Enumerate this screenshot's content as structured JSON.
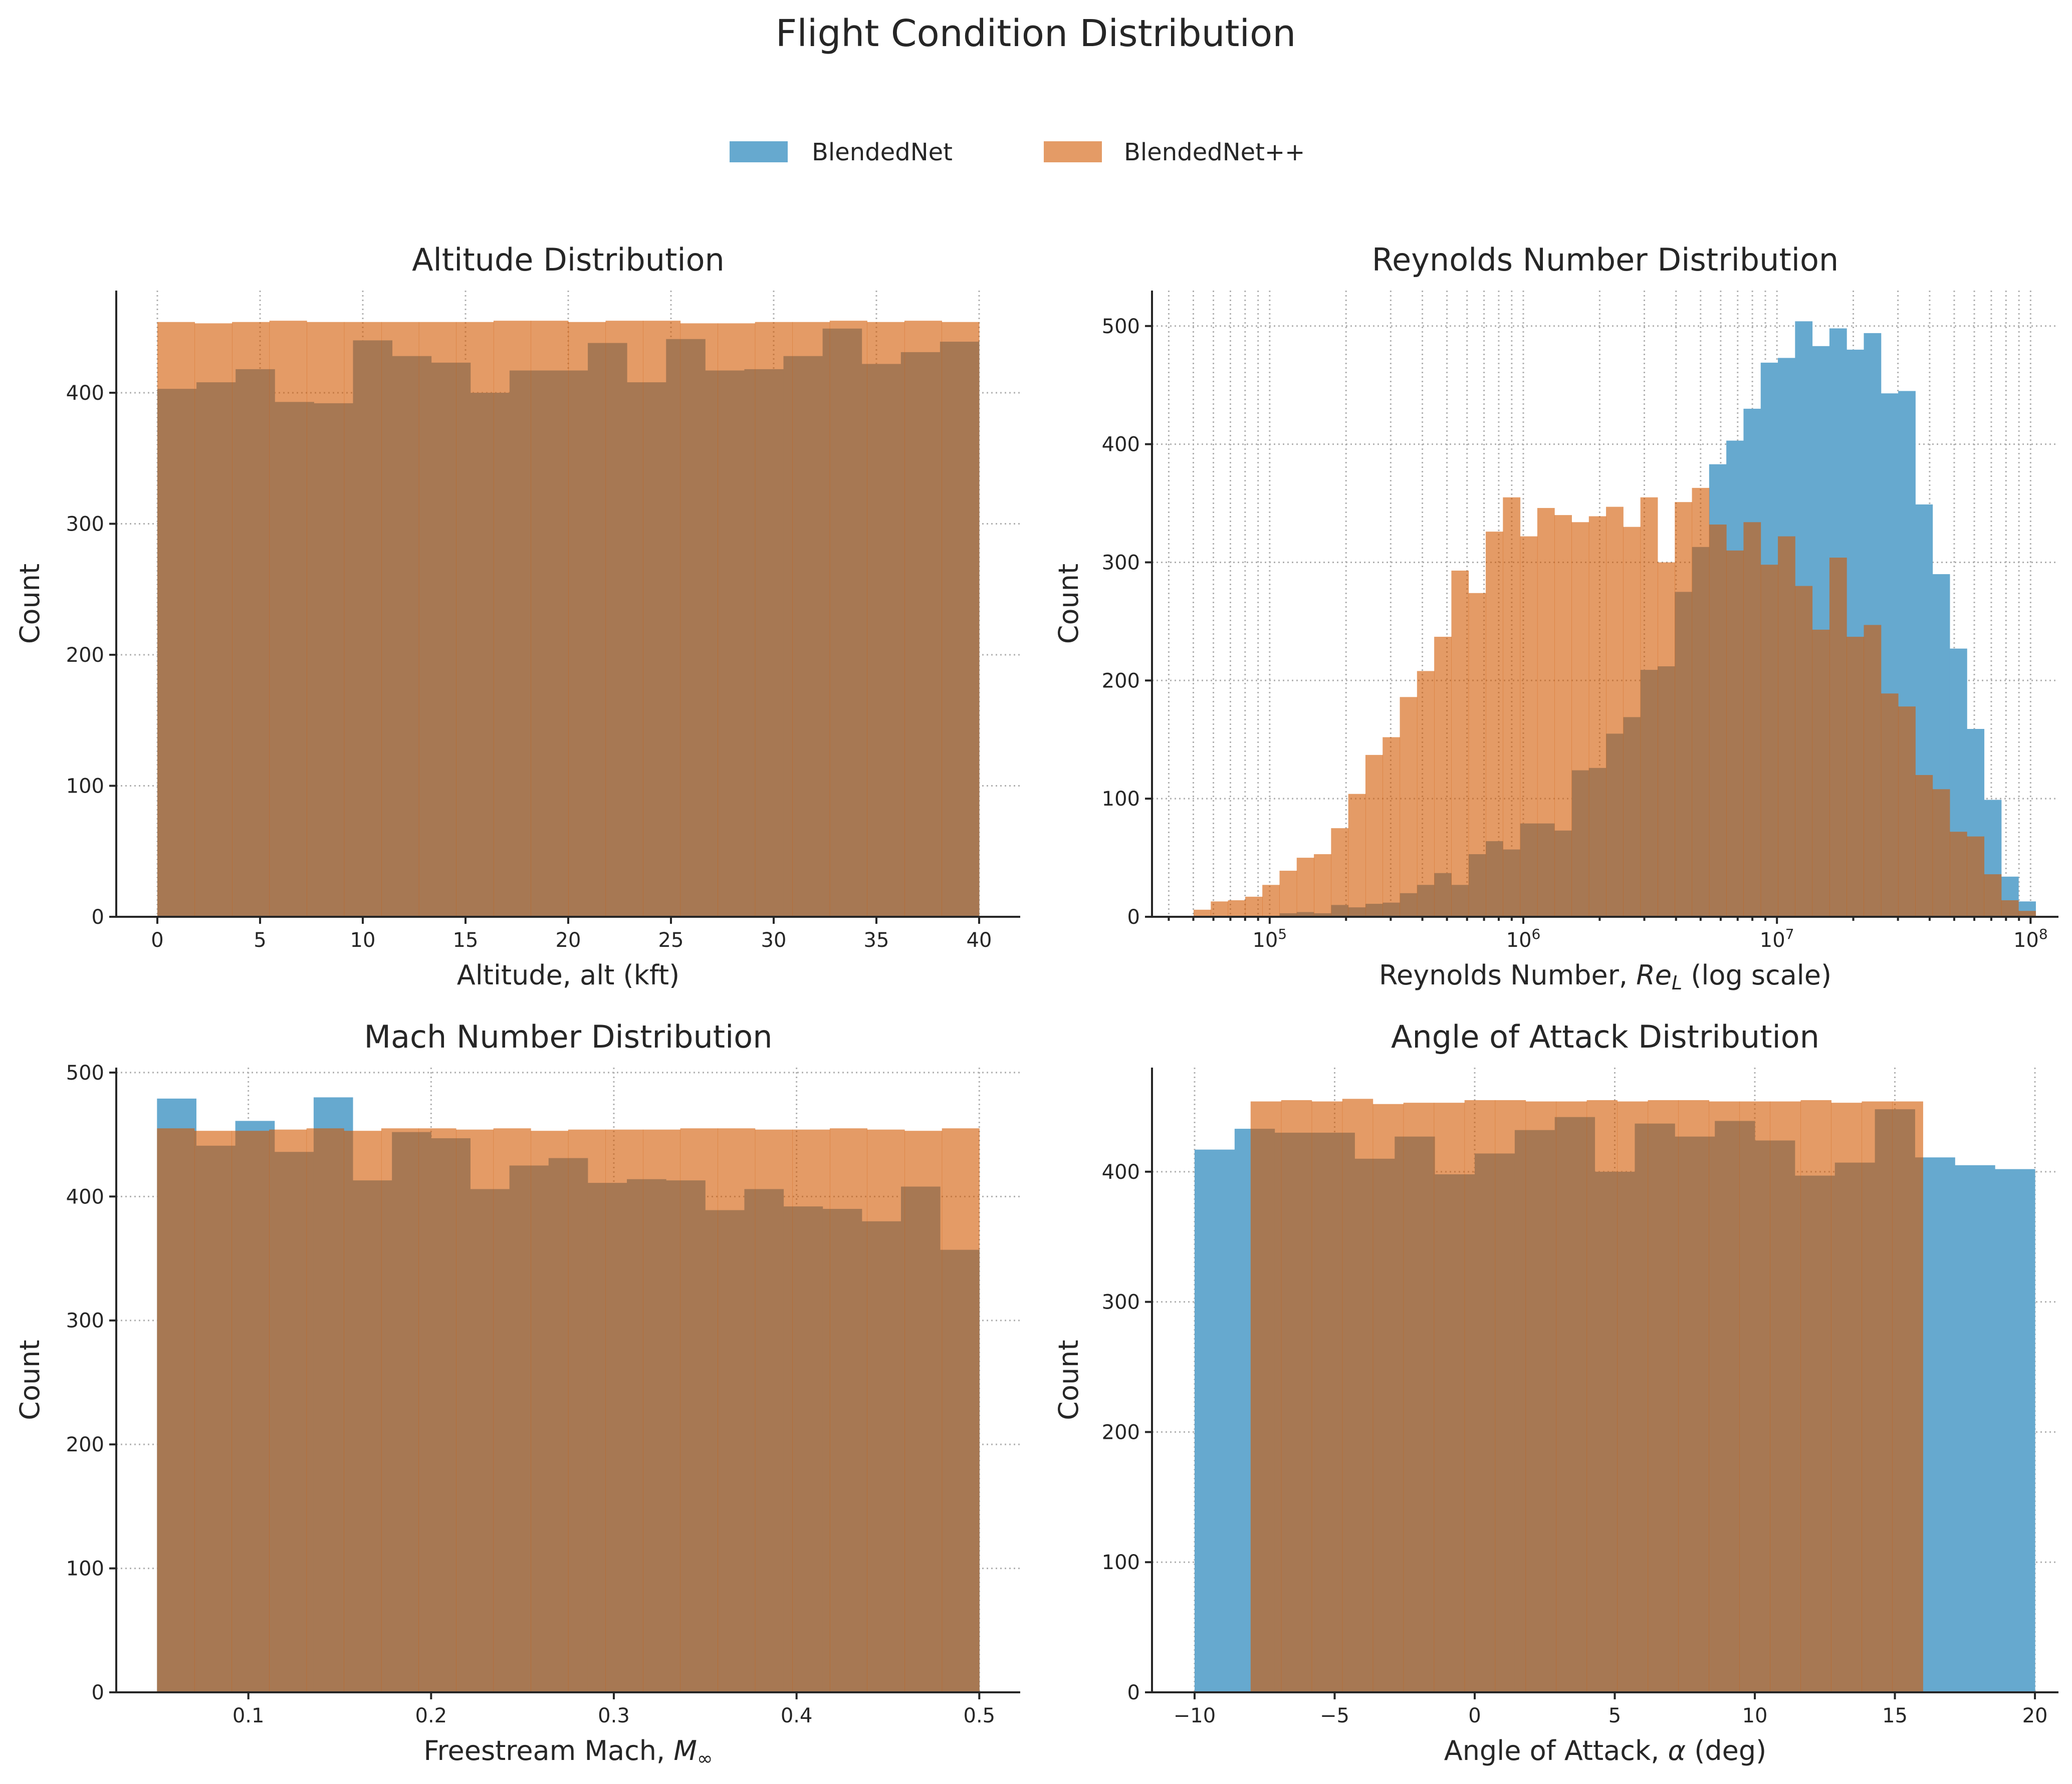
{
  "colors": {
    "blue": "#66a9cf",
    "orange": "#d25900",
    "orange_opacity": 0.6
  },
  "chart_data": {
    "title": "Flight Condition Distribution",
    "legend": {
      "placement": "top-center",
      "entries": [
        "BlendedNet",
        "BlendedNet++"
      ]
    },
    "panels": [
      {
        "key": "altitude",
        "type": "bar",
        "title": "Altitude Distribution",
        "xlabel": {
          "text": "Altitude, alt (kft)"
        },
        "ylabel": "Count",
        "xscale": "linear",
        "xlim": [
          -2,
          42
        ],
        "ylim": [
          0,
          478
        ],
        "xticks": [
          0,
          5,
          10,
          15,
          20,
          25,
          30,
          35,
          40
        ],
        "xticklabels": [
          "0",
          "5",
          "10",
          "15",
          "20",
          "25",
          "30",
          "35",
          "40"
        ],
        "yticks": [
          0,
          100,
          200,
          300,
          400
        ],
        "yticklabels": [
          "0",
          "100",
          "200",
          "300",
          "400"
        ],
        "series": [
          {
            "name": "BlendedNet",
            "range": [
              0,
              40
            ],
            "values": [
              403,
              408,
              418,
              393,
              392,
              440,
              428,
              423,
              400,
              417,
              417,
              438,
              408,
              441,
              417,
              418,
              428,
              449,
              422,
              431,
              439
            ]
          },
          {
            "name": "BlendedNet++",
            "range": [
              0,
              40
            ],
            "values": [
              454,
              453,
              454,
              455,
              454,
              454,
              454,
              454,
              454,
              455,
              455,
              454,
              455,
              455,
              453,
              453,
              454,
              454,
              455,
              454,
              455,
              454
            ]
          }
        ]
      },
      {
        "key": "reynolds",
        "type": "bar",
        "title": "Reynolds Number Distribution",
        "xlabel": {
          "text": "Reynolds Number, ",
          "italic": "Re",
          "sub": "L",
          "suffix": " (log scale)"
        },
        "ylabel": "Count",
        "xscale": "log",
        "xlim_log10": [
          4.536,
          8.11
        ],
        "ylim": [
          0,
          530
        ],
        "xticks_log10": [
          5,
          6,
          7,
          8
        ],
        "xticklabels": [
          {
            "base": "10",
            "exp": "5"
          },
          {
            "base": "10",
            "exp": "6"
          },
          {
            "base": "10",
            "exp": "7"
          },
          {
            "base": "10",
            "exp": "8"
          }
        ],
        "yticks": [
          0,
          100,
          200,
          300,
          400,
          500
        ],
        "yticklabels": [
          "0",
          "100",
          "200",
          "300",
          "400",
          "500"
        ],
        "series": [
          {
            "name": "BlendedNet",
            "range_log10": [
              4.7,
              8.02
            ],
            "values": [
              0,
              0,
              0,
              0,
              0,
              3,
              4,
              3,
              10,
              8,
              11,
              12,
              20,
              27,
              37,
              27,
              53,
              64,
              57,
              79,
              79,
              73,
              124,
              126,
              155,
              169,
              209,
              212,
              275,
              313,
              383,
              403,
              430,
              469,
              473,
              504,
              483,
              498,
              480,
              494,
              443,
              445,
              349,
              290,
              227,
              159,
              99,
              34,
              13
            ]
          },
          {
            "name": "BlendedNet++",
            "range_log10": [
              4.7,
              8.02
            ],
            "values": [
              6,
              13,
              14,
              17,
              27,
              39,
              50,
              53,
              75,
              104,
              137,
              152,
              186,
              208,
              237,
              293,
              274,
              326,
              355,
              322,
              346,
              340,
              334,
              339,
              347,
              330,
              355,
              300,
              351,
              363,
              332,
              310,
              334,
              298,
              322,
              280,
              243,
              304,
              237,
              247,
              189,
              178,
              120,
              108,
              72,
              68,
              36,
              14,
              5
            ]
          }
        ]
      },
      {
        "key": "mach",
        "type": "bar",
        "title": "Mach Number Distribution",
        "xlabel": {
          "text": "Freestream Mach, ",
          "italic": "M",
          "sub": "∞",
          "suffix": ""
        },
        "ylabel": "Count",
        "xscale": "linear",
        "xlim": [
          0.0277,
          0.5224
        ],
        "ylim": [
          0,
          504
        ],
        "xticks": [
          0.1,
          0.2,
          0.3,
          0.4,
          0.5
        ],
        "xticklabels": [
          "0.1",
          "0.2",
          "0.3",
          "0.4",
          "0.5"
        ],
        "yticks": [
          0,
          100,
          200,
          300,
          400,
          500
        ],
        "yticklabels": [
          "0",
          "100",
          "200",
          "300",
          "400",
          "500"
        ],
        "series": [
          {
            "name": "BlendedNet",
            "range": [
              0.05,
              0.5
            ],
            "values": [
              479,
              441,
              461,
              436,
              480,
              413,
              452,
              447,
              406,
              425,
              431,
              411,
              414,
              413,
              389,
              406,
              392,
              390,
              380,
              408,
              357
            ]
          },
          {
            "name": "BlendedNet++",
            "range": [
              0.05,
              0.5
            ],
            "values": [
              455,
              453,
              453,
              454,
              455,
              453,
              455,
              455,
              454,
              455,
              453,
              454,
              454,
              454,
              455,
              455,
              454,
              454,
              455,
              454,
              453,
              455
            ]
          }
        ]
      },
      {
        "key": "aoa",
        "type": "bar",
        "title": "Angle of Attack Distribution",
        "xlabel": {
          "text": "Angle of Attack, ",
          "italic": "α",
          "sub": "",
          "suffix": " (deg)"
        },
        "ylabel": "Count",
        "xscale": "linear",
        "xlim": [
          -11.52,
          20.84
        ],
        "ylim": [
          0,
          480
        ],
        "xticks": [
          -10,
          -5,
          0,
          5,
          10,
          15,
          20
        ],
        "xticklabels": [
          "−10",
          "−5",
          "0",
          "5",
          "10",
          "15",
          "20"
        ],
        "yticks": [
          0,
          100,
          200,
          300,
          400
        ],
        "yticklabels": [
          "0",
          "100",
          "200",
          "300",
          "400"
        ],
        "series": [
          {
            "name": "BlendedNet",
            "range": [
              -10,
              20
            ],
            "values": [
              417,
              433,
              430,
              430,
              410,
              427,
              398,
              414,
              432,
              442,
              400,
              437,
              427,
              439,
              424,
              397,
              407,
              448,
              411,
              405,
              402
            ]
          },
          {
            "name": "BlendedNet++",
            "range": [
              -8,
              16
            ],
            "values": [
              454,
              455,
              454,
              456,
              452,
              453,
              453,
              455,
              455,
              454,
              454,
              455,
              454,
              455,
              455,
              454,
              454,
              454,
              455,
              453,
              454,
              454
            ]
          }
        ]
      }
    ]
  }
}
